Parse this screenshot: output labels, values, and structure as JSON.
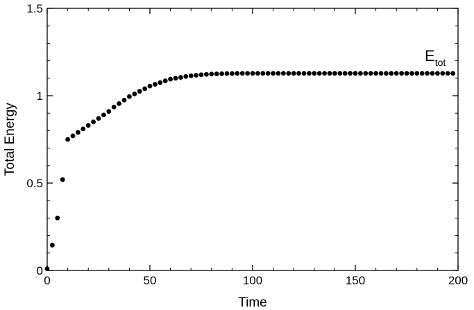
{
  "chart_data": {
    "type": "scatter",
    "title": "",
    "xlabel": "Time",
    "ylabel": "Total Energy",
    "xlim": [
      0,
      200
    ],
    "ylim": [
      0,
      1.5
    ],
    "xticks": [
      0,
      50,
      100,
      150,
      200
    ],
    "xtick_labels": [
      "0",
      "50",
      "100",
      "150",
      "200"
    ],
    "yticks": [
      0,
      0.5,
      1,
      1.5
    ],
    "ytick_labels": [
      "0",
      "0.5",
      "1",
      "1.5"
    ],
    "grid": false,
    "legend": null,
    "annotation": {
      "text": "E",
      "subscript": "tot",
      "position": "top-right"
    },
    "series": [
      {
        "marker": "filled-circle",
        "color": "#000000",
        "x": [
          0,
          2.5,
          5,
          7.5,
          10,
          12.5,
          15,
          17.5,
          20,
          22.5,
          25,
          27.5,
          30,
          32.5,
          35,
          37.5,
          40,
          42.5,
          45,
          47.5,
          50,
          52.5,
          55,
          57.5,
          60,
          62.5,
          65,
          67.5,
          70,
          72.5,
          75,
          77.5,
          80,
          82.5,
          85,
          87.5,
          90,
          92.5,
          95,
          97.5,
          100,
          102.5,
          105,
          107.5,
          110,
          112.5,
          115,
          117.5,
          120,
          122.5,
          125,
          127.5,
          130,
          132.5,
          135,
          137.5,
          140,
          142.5,
          145,
          147.5,
          150,
          152.5,
          155,
          157.5,
          160,
          162.5,
          165,
          167.5,
          170,
          172.5,
          175,
          177.5,
          180,
          182.5,
          185,
          187.5,
          190,
          192.5,
          195,
          197.5
        ],
        "y": [
          0.01,
          0.145,
          0.3,
          0.52,
          0.75,
          0.77,
          0.79,
          0.81,
          0.83,
          0.85,
          0.87,
          0.89,
          0.91,
          0.935,
          0.955,
          0.975,
          0.995,
          1.01,
          1.025,
          1.04,
          1.055,
          1.065,
          1.075,
          1.085,
          1.095,
          1.1,
          1.105,
          1.11,
          1.114,
          1.117,
          1.12,
          1.122,
          1.124,
          1.125,
          1.126,
          1.127,
          1.127,
          1.128,
          1.128,
          1.128,
          1.128,
          1.128,
          1.128,
          1.128,
          1.128,
          1.128,
          1.128,
          1.128,
          1.128,
          1.128,
          1.128,
          1.128,
          1.128,
          1.128,
          1.128,
          1.128,
          1.128,
          1.128,
          1.128,
          1.128,
          1.128,
          1.128,
          1.128,
          1.128,
          1.128,
          1.128,
          1.128,
          1.128,
          1.128,
          1.128,
          1.128,
          1.128,
          1.128,
          1.128,
          1.128,
          1.128,
          1.128,
          1.128,
          1.128,
          1.128
        ]
      }
    ]
  }
}
